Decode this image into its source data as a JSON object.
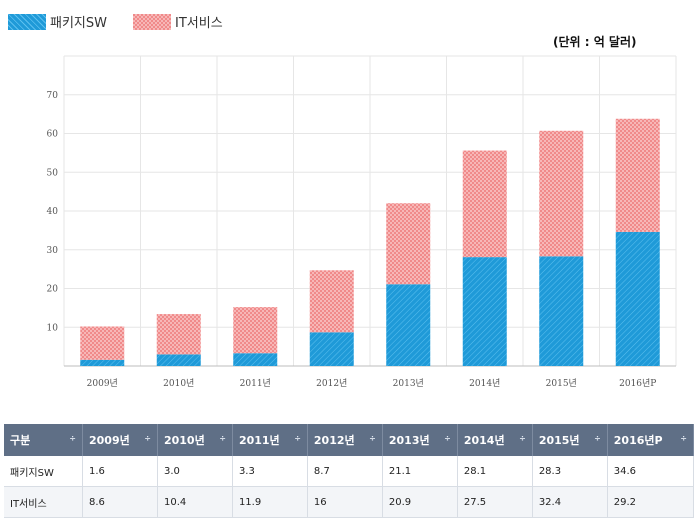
{
  "legend": {
    "sw": "패키지SW",
    "it": "IT서비스"
  },
  "unit_label": "(단위 : 억 달러)",
  "colors": {
    "sw": "#1f9ad8",
    "it": "#f08a8a",
    "grid": "#e6e6e6"
  },
  "chart_data": {
    "type": "bar",
    "stacked": true,
    "categories": [
      "2009년",
      "2010년",
      "2011년",
      "2012년",
      "2013년",
      "2014년",
      "2015년",
      "2016년P"
    ],
    "series": [
      {
        "name": "패키지SW",
        "values": [
          1.6,
          3.0,
          3.3,
          8.7,
          21.1,
          28.1,
          28.3,
          34.6
        ]
      },
      {
        "name": "IT서비스",
        "values": [
          8.6,
          10.4,
          11.9,
          16,
          20.9,
          27.5,
          32.4,
          29.2
        ]
      }
    ],
    "ylim": [
      0,
      80
    ],
    "yticks": [
      10,
      20,
      30,
      40,
      50,
      60,
      70
    ],
    "grid": true,
    "legend_position": "top-left"
  },
  "table": {
    "headers": [
      "구분",
      "2009년",
      "2010년",
      "2011년",
      "2012년",
      "2013년",
      "2014년",
      "2015년",
      "2016년P"
    ],
    "sort_icon": "÷",
    "rows": [
      [
        "패키지SW",
        "1.6",
        "3.0",
        "3.3",
        "8.7",
        "21.1",
        "28.1",
        "28.3",
        "34.6"
      ],
      [
        "IT서비스",
        "8.6",
        "10.4",
        "11.9",
        "16",
        "20.9",
        "27.5",
        "32.4",
        "29.2"
      ]
    ]
  }
}
